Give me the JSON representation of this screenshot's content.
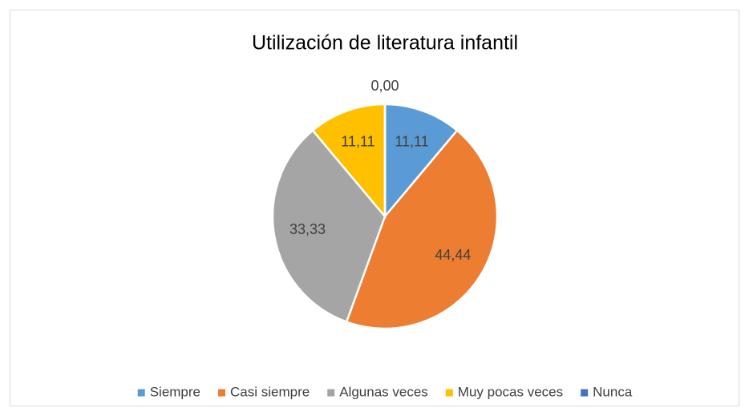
{
  "chart_data": {
    "type": "pie",
    "title": "Utilización de literatura infantil",
    "categories": [
      "Siempre",
      "Casi siempre",
      "Algunas veces",
      "Muy pocas veces",
      "Nunca"
    ],
    "values": [
      11.11,
      44.44,
      33.33,
      11.11,
      0
    ],
    "value_labels": [
      "11,11",
      "44,44",
      "33,33",
      "11,11",
      "0,00"
    ],
    "colors": [
      "#5b9bd5",
      "#ed7d31",
      "#a5a5a5",
      "#ffc000",
      "#4472c4"
    ],
    "legend": "bottom"
  }
}
